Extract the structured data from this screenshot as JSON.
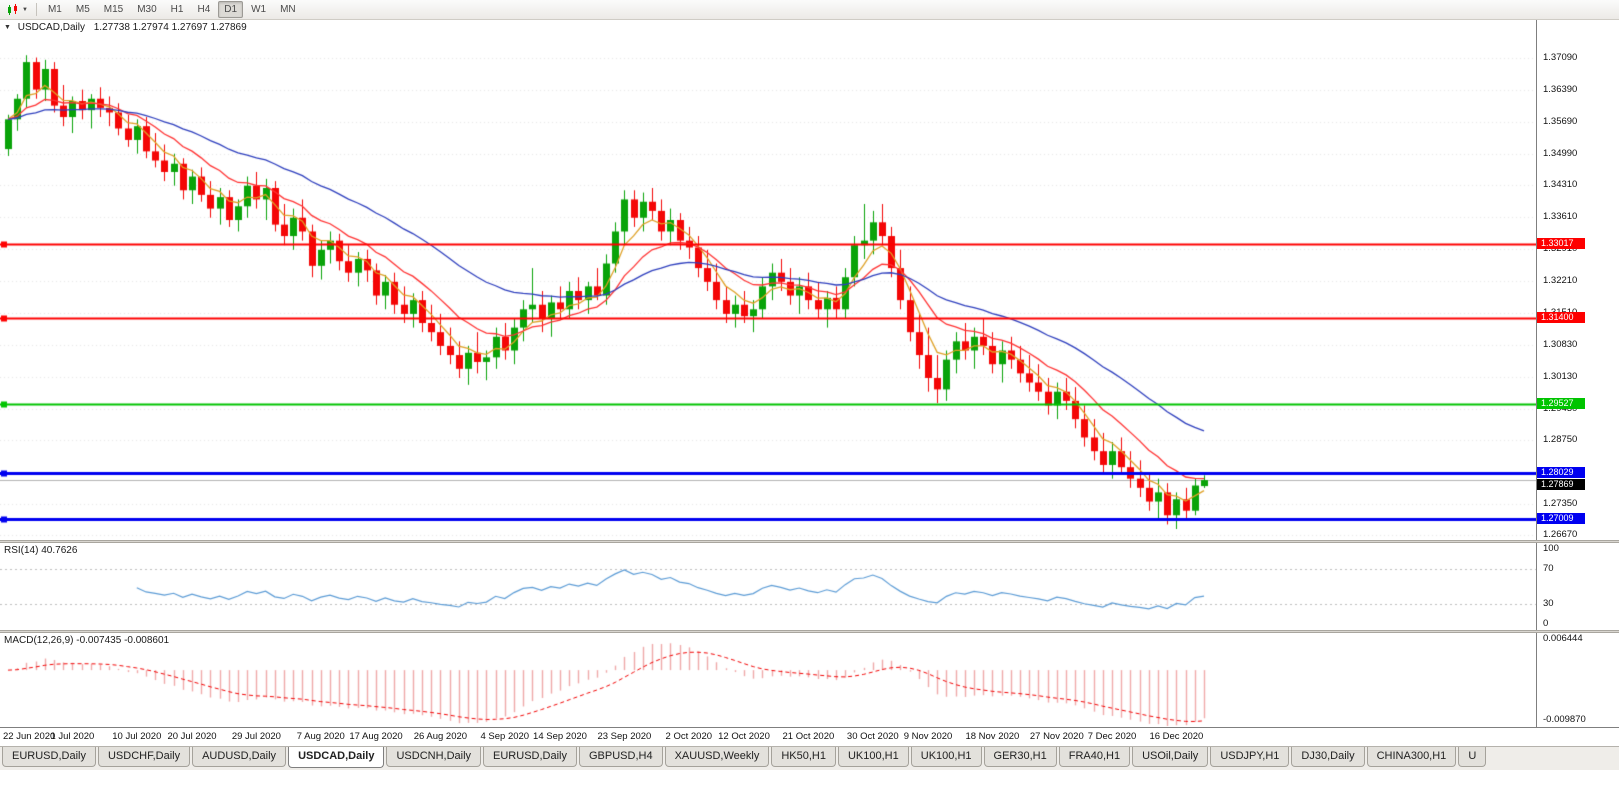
{
  "header": {
    "symbol_period": "USDCAD,Daily",
    "ohlc": "1.27738 1.27974 1.27697 1.27869"
  },
  "toolbar": {
    "timeframes": [
      "M1",
      "M5",
      "M15",
      "M30",
      "H1",
      "H4",
      "D1",
      "W1",
      "MN"
    ],
    "active": "D1"
  },
  "chart_data": {
    "type": "candlestick",
    "symbol": "USDCAD",
    "timeframe": "Daily",
    "ohlc_label": {
      "open": "1.27738",
      "high": "1.27974",
      "low": "1.27697",
      "close": "1.27869"
    },
    "colors": {
      "up": "#09A309",
      "down": "#F40606",
      "grid": "#E7E7E7"
    },
    "y_axis": {
      "min": 1.2656,
      "max": 1.3792,
      "ticks": [
        "1.37090",
        "1.36390",
        "1.35690",
        "1.34990",
        "1.34310",
        "1.33610",
        "1.32910",
        "1.32210",
        "1.31510",
        "1.30830",
        "1.30130",
        "1.29430",
        "1.28750",
        "1.28050",
        "1.27350",
        "1.26670"
      ]
    },
    "x_axis": {
      "labels": [
        {
          "text": "22 Jun 2020",
          "i": 0
        },
        {
          "text": "1 Jul 2020",
          "i": 7
        },
        {
          "text": "10 Jul 2020",
          "i": 14
        },
        {
          "text": "20 Jul 2020",
          "i": 20
        },
        {
          "text": "29 Jul 2020",
          "i": 27
        },
        {
          "text": "7 Aug 2020",
          "i": 34
        },
        {
          "text": "17 Aug 2020",
          "i": 40
        },
        {
          "text": "26 Aug 2020",
          "i": 47
        },
        {
          "text": "4 Sep 2020",
          "i": 54
        },
        {
          "text": "14 Sep 2020",
          "i": 60
        },
        {
          "text": "23 Sep 2020",
          "i": 67
        },
        {
          "text": "2 Oct 2020",
          "i": 74
        },
        {
          "text": "12 Oct 2020",
          "i": 80
        },
        {
          "text": "21 Oct 2020",
          "i": 87
        },
        {
          "text": "30 Oct 2020",
          "i": 94
        },
        {
          "text": "9 Nov 2020",
          "i": 100
        },
        {
          "text": "18 Nov 2020",
          "i": 107
        },
        {
          "text": "27 Nov 2020",
          "i": 114
        },
        {
          "text": "7 Dec 2020",
          "i": 120
        },
        {
          "text": "16 Dec 2020",
          "i": 127
        }
      ]
    },
    "hlines": [
      {
        "price": 1.33017,
        "label": "1.33017",
        "color": "#FE0000",
        "width": 2
      },
      {
        "price": 1.314,
        "label": "1.31400",
        "color": "#FE0000",
        "width": 2
      },
      {
        "price": 1.29527,
        "label": "1.29527",
        "color": "#00C400",
        "width": 2
      },
      {
        "price": 1.28029,
        "label": "1.28029",
        "color": "#0000F0",
        "width": 3
      },
      {
        "price": 1.27009,
        "label": "1.27009",
        "color": "#0000F0",
        "width": 3
      }
    ],
    "current_price": {
      "value": 1.27869,
      "label": "1.27869",
      "line_color": "#B4B4B4",
      "tag_bg": "#000000"
    },
    "moving_averages": [
      {
        "name": "ma-fast",
        "type": "ema",
        "period": 5,
        "color": "#DFA126"
      },
      {
        "name": "ma-mid",
        "type": "ema",
        "period": 12,
        "color": "#FF3232"
      },
      {
        "name": "ma-slow",
        "type": "ema",
        "period": 30,
        "color": "#2E3FBE"
      }
    ],
    "indicators": {
      "rsi": {
        "label": "RSI(14) 40.7626",
        "period": 14,
        "current": "40.7626",
        "levels": [
          70,
          30
        ],
        "axis_ticks": [
          "100",
          "70",
          "30",
          "0"
        ],
        "color": "#5B9BD5",
        "range": [
          0,
          100
        ]
      },
      "macd": {
        "label": "MACD(12,26,9) -0.007435 -0.008601",
        "fast": 12,
        "slow": 26,
        "signal_period": 9,
        "current_macd": "-0.007435",
        "current_signal": "-0.008601",
        "axis_top": "0.006444",
        "axis_bottom": "-0.009870",
        "hist_color": "#EFA9A9",
        "signal_color": "#F20000",
        "range": [
          -0.00987,
          0.006444
        ]
      }
    },
    "candles": [
      [
        1.351,
        1.3585,
        1.3495,
        1.3575
      ],
      [
        1.3575,
        1.363,
        1.355,
        1.362
      ],
      [
        1.362,
        1.3715,
        1.36,
        1.37
      ],
      [
        1.37,
        1.371,
        1.362,
        1.364
      ],
      [
        1.364,
        1.3705,
        1.3615,
        1.3685
      ],
      [
        1.3685,
        1.37,
        1.359,
        1.3605
      ],
      [
        1.3605,
        1.365,
        1.356,
        1.358
      ],
      [
        1.358,
        1.3625,
        1.3545,
        1.3615
      ],
      [
        1.3615,
        1.364,
        1.3575,
        1.3595
      ],
      [
        1.3595,
        1.363,
        1.3555,
        1.362
      ],
      [
        1.362,
        1.3645,
        1.358,
        1.36
      ],
      [
        1.36,
        1.3625,
        1.356,
        1.359
      ],
      [
        1.359,
        1.361,
        1.354,
        1.3555
      ],
      [
        1.3555,
        1.3585,
        1.3515,
        1.353
      ],
      [
        1.353,
        1.3575,
        1.35,
        1.356
      ],
      [
        1.356,
        1.358,
        1.349,
        1.3505
      ],
      [
        1.3505,
        1.3545,
        1.347,
        1.3485
      ],
      [
        1.3485,
        1.352,
        1.344,
        1.346
      ],
      [
        1.346,
        1.35,
        1.343,
        1.3478
      ],
      [
        1.3478,
        1.349,
        1.34,
        1.342
      ],
      [
        1.342,
        1.3465,
        1.339,
        1.345
      ],
      [
        1.345,
        1.347,
        1.3395,
        1.341
      ],
      [
        1.341,
        1.344,
        1.336,
        1.338
      ],
      [
        1.338,
        1.3425,
        1.3345,
        1.3405
      ],
      [
        1.3405,
        1.342,
        1.334,
        1.3355
      ],
      [
        1.3355,
        1.34,
        1.333,
        1.3385
      ],
      [
        1.3385,
        1.345,
        1.336,
        1.343
      ],
      [
        1.343,
        1.346,
        1.338,
        1.34
      ],
      [
        1.34,
        1.3445,
        1.3355,
        1.3425
      ],
      [
        1.3425,
        1.344,
        1.333,
        1.3345
      ],
      [
        1.3345,
        1.339,
        1.33,
        1.332
      ],
      [
        1.332,
        1.338,
        1.329,
        1.336
      ],
      [
        1.336,
        1.34,
        1.331,
        1.333
      ],
      [
        1.333,
        1.3345,
        1.323,
        1.3255
      ],
      [
        1.3255,
        1.331,
        1.3225,
        1.329
      ],
      [
        1.329,
        1.333,
        1.326,
        1.331
      ],
      [
        1.331,
        1.3325,
        1.3245,
        1.3265
      ],
      [
        1.3265,
        1.33,
        1.322,
        1.324
      ],
      [
        1.324,
        1.3285,
        1.321,
        1.327
      ],
      [
        1.327,
        1.329,
        1.322,
        1.3245
      ],
      [
        1.3245,
        1.326,
        1.317,
        1.319
      ],
      [
        1.319,
        1.3235,
        1.316,
        1.322
      ],
      [
        1.322,
        1.324,
        1.315,
        1.317
      ],
      [
        1.317,
        1.321,
        1.313,
        1.315
      ],
      [
        1.315,
        1.3195,
        1.312,
        1.318
      ],
      [
        1.318,
        1.32,
        1.311,
        1.313
      ],
      [
        1.313,
        1.317,
        1.309,
        1.311
      ],
      [
        1.311,
        1.315,
        1.306,
        1.308
      ],
      [
        1.308,
        1.312,
        1.304,
        1.306
      ],
      [
        1.306,
        1.309,
        1.301,
        1.303
      ],
      [
        1.303,
        1.308,
        1.2995,
        1.3065
      ],
      [
        1.3065,
        1.311,
        1.302,
        1.3045
      ],
      [
        1.3045,
        1.307,
        1.3005,
        1.3055
      ],
      [
        1.3055,
        1.312,
        1.303,
        1.31
      ],
      [
        1.31,
        1.313,
        1.305,
        1.307
      ],
      [
        1.307,
        1.314,
        1.304,
        1.312
      ],
      [
        1.312,
        1.318,
        1.309,
        1.316
      ],
      [
        1.316,
        1.325,
        1.313,
        1.317
      ],
      [
        1.317,
        1.32,
        1.311,
        1.314
      ],
      [
        1.314,
        1.319,
        1.31,
        1.3175
      ],
      [
        1.3175,
        1.321,
        1.314,
        1.316
      ],
      [
        1.316,
        1.322,
        1.314,
        1.32
      ],
      [
        1.32,
        1.323,
        1.316,
        1.318
      ],
      [
        1.318,
        1.322,
        1.315,
        1.321
      ],
      [
        1.321,
        1.325,
        1.318,
        1.319
      ],
      [
        1.319,
        1.328,
        1.317,
        1.326
      ],
      [
        1.326,
        1.335,
        1.324,
        1.333
      ],
      [
        1.333,
        1.342,
        1.33,
        1.34
      ],
      [
        1.34,
        1.342,
        1.334,
        1.336
      ],
      [
        1.336,
        1.3415,
        1.333,
        1.3395
      ],
      [
        1.3395,
        1.3425,
        1.3355,
        1.3375
      ],
      [
        1.3375,
        1.34,
        1.331,
        1.333
      ],
      [
        1.333,
        1.338,
        1.33,
        1.3355
      ],
      [
        1.3355,
        1.337,
        1.329,
        1.331
      ],
      [
        1.331,
        1.334,
        1.327,
        1.3295
      ],
      [
        1.3295,
        1.332,
        1.323,
        1.325
      ],
      [
        1.325,
        1.329,
        1.32,
        1.322
      ],
      [
        1.322,
        1.326,
        1.316,
        1.318
      ],
      [
        1.318,
        1.321,
        1.313,
        1.315
      ],
      [
        1.315,
        1.319,
        1.312,
        1.317
      ],
      [
        1.317,
        1.32,
        1.313,
        1.3145
      ],
      [
        1.3145,
        1.318,
        1.311,
        1.316
      ],
      [
        1.316,
        1.323,
        1.314,
        1.321
      ],
      [
        1.321,
        1.326,
        1.318,
        1.324
      ],
      [
        1.324,
        1.327,
        1.32,
        1.322
      ],
      [
        1.322,
        1.325,
        1.317,
        1.319
      ],
      [
        1.319,
        1.323,
        1.315,
        1.321
      ],
      [
        1.321,
        1.324,
        1.316,
        1.318
      ],
      [
        1.318,
        1.322,
        1.314,
        1.316
      ],
      [
        1.316,
        1.32,
        1.312,
        1.3185
      ],
      [
        1.3185,
        1.321,
        1.314,
        1.316
      ],
      [
        1.316,
        1.325,
        1.314,
        1.323
      ],
      [
        1.323,
        1.332,
        1.321,
        1.33
      ],
      [
        1.33,
        1.339,
        1.327,
        1.331
      ],
      [
        1.331,
        1.3375,
        1.328,
        1.335
      ],
      [
        1.335,
        1.339,
        1.33,
        1.332
      ],
      [
        1.332,
        1.334,
        1.323,
        1.325
      ],
      [
        1.325,
        1.329,
        1.316,
        1.318
      ],
      [
        1.318,
        1.321,
        1.309,
        1.311
      ],
      [
        1.311,
        1.315,
        1.303,
        1.306
      ],
      [
        1.306,
        1.312,
        1.298,
        1.301
      ],
      [
        1.301,
        1.306,
        1.2955,
        1.2985
      ],
      [
        1.2985,
        1.307,
        1.296,
        1.305
      ],
      [
        1.305,
        1.311,
        1.302,
        1.309
      ],
      [
        1.309,
        1.313,
        1.305,
        1.307
      ],
      [
        1.307,
        1.312,
        1.303,
        1.31
      ],
      [
        1.31,
        1.314,
        1.306,
        1.308
      ],
      [
        1.308,
        1.311,
        1.302,
        1.304
      ],
      [
        1.304,
        1.309,
        1.3,
        1.307
      ],
      [
        1.307,
        1.31,
        1.303,
        1.305
      ],
      [
        1.305,
        1.308,
        1.3,
        1.302
      ],
      [
        1.302,
        1.306,
        1.298,
        1.3
      ],
      [
        1.3,
        1.304,
        1.296,
        1.298
      ],
      [
        1.298,
        1.301,
        1.293,
        1.295
      ],
      [
        1.295,
        1.3,
        1.292,
        1.298
      ],
      [
        1.298,
        1.301,
        1.294,
        1.296
      ],
      [
        1.296,
        1.299,
        1.29,
        1.292
      ],
      [
        1.292,
        1.295,
        1.286,
        1.288
      ],
      [
        1.288,
        1.292,
        1.283,
        1.285
      ],
      [
        1.285,
        1.289,
        1.28,
        1.282
      ],
      [
        1.282,
        1.287,
        1.279,
        1.285
      ],
      [
        1.285,
        1.288,
        1.28,
        1.2815
      ],
      [
        1.2815,
        1.285,
        1.277,
        1.279
      ],
      [
        1.279,
        1.283,
        1.275,
        1.277
      ],
      [
        1.277,
        1.28,
        1.272,
        1.274
      ],
      [
        1.274,
        1.279,
        1.27,
        1.276
      ],
      [
        1.276,
        1.278,
        1.269,
        1.271
      ],
      [
        1.271,
        1.276,
        1.268,
        1.2745
      ],
      [
        1.2745,
        1.277,
        1.27,
        1.272
      ],
      [
        1.272,
        1.279,
        1.271,
        1.2775
      ],
      [
        1.27738,
        1.27974,
        1.27697,
        1.27869
      ]
    ]
  },
  "tabs": {
    "active_index": 3,
    "items": [
      "EURUSD,Daily",
      "USDCHF,Daily",
      "AUDUSD,Daily",
      "USDCAD,Daily",
      "USDCNH,Daily",
      "EURUSD,Daily",
      "GBPUSD,H4",
      "XAUUSD,Weekly",
      "HK50,H1",
      "UK100,H1",
      "UK100,H1",
      "GER30,H1",
      "FRA40,H1",
      "USOil,Daily",
      "USDJPY,H1",
      "DJ30,Daily",
      "CHINA300,H1",
      "U"
    ]
  }
}
